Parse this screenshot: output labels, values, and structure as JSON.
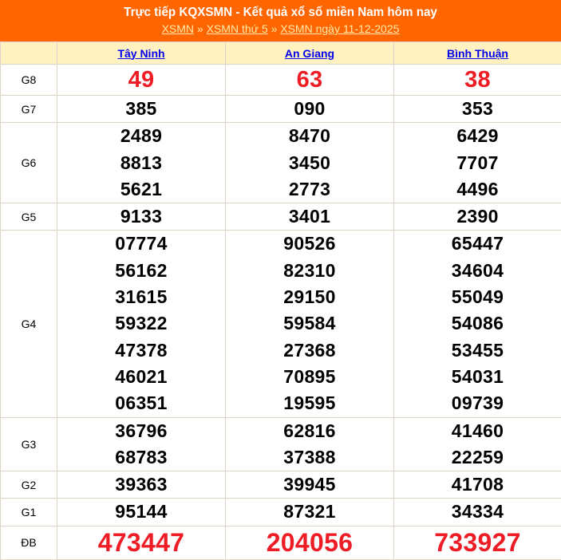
{
  "header": {
    "title": "Trực tiếp KQXSMN - Kết quả xổ số miền Nam hôm nay",
    "breadcrumb": [
      "XSMN",
      "XSMN thứ 5",
      "XSMN ngày 11-12-2025"
    ],
    "separator": "»"
  },
  "provinces": [
    "Tây Ninh",
    "An Giang",
    "Bình Thuận"
  ],
  "prizes": [
    {
      "label": "G8",
      "values": [
        [
          "49"
        ],
        [
          "63"
        ],
        [
          "38"
        ]
      ]
    },
    {
      "label": "G7",
      "values": [
        [
          "385"
        ],
        [
          "090"
        ],
        [
          "353"
        ]
      ]
    },
    {
      "label": "G6",
      "values": [
        [
          "2489",
          "8813",
          "5621"
        ],
        [
          "8470",
          "3450",
          "2773"
        ],
        [
          "6429",
          "7707",
          "4496"
        ]
      ]
    },
    {
      "label": "G5",
      "values": [
        [
          "9133"
        ],
        [
          "3401"
        ],
        [
          "2390"
        ]
      ]
    },
    {
      "label": "G4",
      "values": [
        [
          "07774",
          "56162",
          "31615",
          "59322",
          "47378",
          "46021",
          "06351"
        ],
        [
          "90526",
          "82310",
          "29150",
          "59584",
          "27368",
          "70895",
          "19595"
        ],
        [
          "65447",
          "34604",
          "55049",
          "54086",
          "53455",
          "54031",
          "09739"
        ]
      ]
    },
    {
      "label": "G3",
      "values": [
        [
          "36796",
          "68783"
        ],
        [
          "62816",
          "37388"
        ],
        [
          "41460",
          "22259"
        ]
      ]
    },
    {
      "label": "G2",
      "values": [
        [
          "39363"
        ],
        [
          "39945"
        ],
        [
          "41708"
        ]
      ]
    },
    {
      "label": "G1",
      "values": [
        [
          "95144"
        ],
        [
          "87321"
        ],
        [
          "34334"
        ]
      ]
    },
    {
      "label": "ĐB",
      "values": [
        [
          "473447"
        ],
        [
          "204056"
        ],
        [
          "733927"
        ]
      ]
    }
  ],
  "colors": {
    "header_bg": "#ff6600",
    "highlight": "#ee1c25",
    "column_header_bg": "#fff2c0"
  }
}
